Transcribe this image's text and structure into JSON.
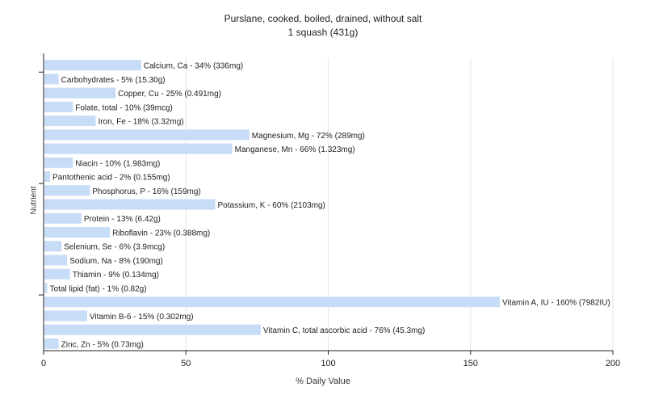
{
  "chart_data": {
    "type": "bar",
    "orientation": "horizontal",
    "title": "Purslane, cooked, boiled, drained, without salt",
    "subtitle": "1 squash (431g)",
    "xlabel": "% Daily Value",
    "ylabel": "Nutrient",
    "xlim": [
      0,
      200
    ],
    "xticks": [
      0,
      50,
      100,
      150,
      200
    ],
    "grid": true,
    "bar_color": "#c6dcf7",
    "categories": [
      "Calcium, Ca - 34% (336mg)",
      "Carbohydrates - 5% (15.30g)",
      "Copper, Cu - 25% (0.491mg)",
      "Folate, total - 10% (39mcg)",
      "Iron, Fe - 18% (3.32mg)",
      "Magnesium, Mg - 72% (289mg)",
      "Manganese, Mn - 66% (1.323mg)",
      "Niacin - 10% (1.983mg)",
      "Pantothenic acid - 2% (0.155mg)",
      "Phosphorus, P - 16% (159mg)",
      "Potassium, K - 60% (2103mg)",
      "Protein - 13% (6.42g)",
      "Riboflavin - 23% (0.388mg)",
      "Selenium, Se - 6% (3.9mcg)",
      "Sodium, Na - 8% (190mg)",
      "Thiamin - 9% (0.134mg)",
      "Total lipid (fat) - 1% (0.82g)",
      "Vitamin A, IU - 160% (7982IU)",
      "Vitamin B-6 - 15% (0.302mg)",
      "Vitamin C, total ascorbic acid - 76% (45.3mg)",
      "Zinc, Zn - 5% (0.73mg)"
    ],
    "values": [
      34,
      5,
      25,
      10,
      18,
      72,
      66,
      10,
      2,
      16,
      60,
      13,
      23,
      6,
      8,
      9,
      1,
      160,
      15,
      76,
      5
    ]
  }
}
